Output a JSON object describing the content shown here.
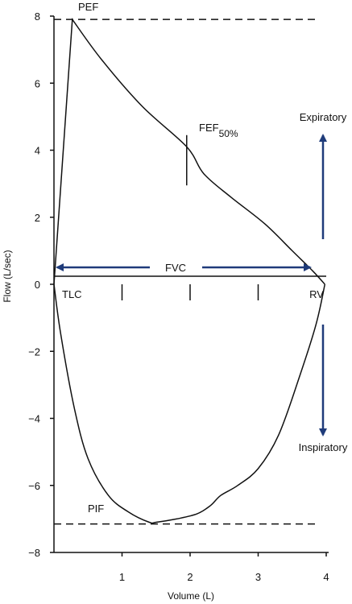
{
  "colors": {
    "curve": "#111111",
    "arrow": "#1f3b7a",
    "axis": "#111111"
  },
  "chart_data": {
    "type": "line",
    "title": "",
    "xlabel": "Volume (L)",
    "ylabel": "Flow (L/sec)",
    "xlim": [
      0,
      4
    ],
    "ylim": [
      -8,
      8
    ],
    "x_ticks": [
      {
        "value": 1,
        "label": "1"
      },
      {
        "value": 2,
        "label": "2"
      },
      {
        "value": 3,
        "label": "3"
      },
      {
        "value": 4,
        "label": "4"
      }
    ],
    "y_ticks": [
      {
        "value": 8,
        "label": "8"
      },
      {
        "value": 6,
        "label": "6"
      },
      {
        "value": 4,
        "label": "4"
      },
      {
        "value": 2,
        "label": "2"
      },
      {
        "value": 0,
        "label": "0"
      },
      {
        "value": -2,
        "label": "−2"
      },
      {
        "value": -4,
        "label": "−4"
      },
      {
        "value": -6,
        "label": "−6"
      },
      {
        "value": -8,
        "label": "−8"
      }
    ],
    "zero_line_ticks": [
      1,
      2,
      3
    ],
    "series": [
      {
        "id": "expiratory",
        "x": [
          0,
          0.27,
          0.7,
          1.3,
          1.95,
          2.2,
          2.6,
          3.1,
          3.5,
          3.8,
          3.98
        ],
        "y": [
          0,
          7.9,
          6.7,
          5.3,
          4.1,
          3.3,
          2.6,
          1.8,
          1.0,
          0.4,
          0
        ]
      },
      {
        "id": "inspiratory",
        "x": [
          0,
          0.1,
          0.3,
          0.5,
          0.8,
          1.1,
          1.4,
          1.5,
          1.8,
          2.1,
          2.3,
          2.45,
          2.7,
          3.0,
          3.3,
          3.6,
          3.85,
          3.98
        ],
        "y": [
          0,
          -1.5,
          -3.7,
          -5.2,
          -6.3,
          -6.8,
          -7.1,
          -7.1,
          -7.0,
          -6.85,
          -6.6,
          -6.3,
          -6.0,
          -5.5,
          -4.5,
          -2.8,
          -1.2,
          0
        ]
      }
    ],
    "reference_lines": [
      {
        "id": "pef-line",
        "y": 7.9
      },
      {
        "id": "pif-line",
        "y": -7.15
      }
    ],
    "fef50_marker": {
      "x": 1.95,
      "y_from": 2.95,
      "y_to": 4.45
    },
    "annotations": {
      "pef": "PEF",
      "fef": "FEF",
      "fef_sub": "50%",
      "fvc": "FVC",
      "tlc": "TLC",
      "rv": "RV",
      "pif": "PIF",
      "expiratory": "Expiratory",
      "inspiratory": "Inspiratory"
    }
  }
}
